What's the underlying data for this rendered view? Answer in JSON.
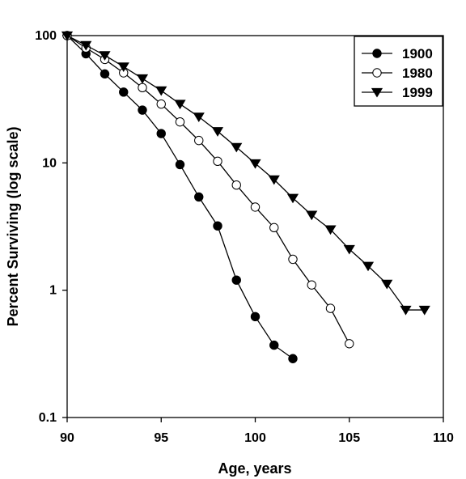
{
  "chart_data": {
    "type": "line",
    "xlabel": "Age, years",
    "ylabel": "Percent Surviving (log scale)",
    "xlim": [
      90,
      110
    ],
    "ylim": [
      0.1,
      100
    ],
    "y_scale": "log",
    "x_ticks": [
      "90",
      "95",
      "100",
      "105",
      "110"
    ],
    "y_ticks": [
      "0.1",
      "1",
      "10",
      "100"
    ],
    "legend_position": "top-right",
    "series": [
      {
        "name": "1900",
        "marker": "filled-circle",
        "x": [
          90,
          91,
          92,
          93,
          94,
          95,
          96,
          97,
          98,
          99,
          100,
          101,
          102
        ],
        "values": [
          100,
          72,
          50,
          36,
          26,
          17,
          9.7,
          5.4,
          3.2,
          1.2,
          0.62,
          0.37,
          0.29
        ]
      },
      {
        "name": "1980",
        "marker": "open-circle",
        "x": [
          90,
          91,
          92,
          93,
          94,
          95,
          96,
          97,
          98,
          99,
          100,
          101,
          102,
          103,
          104,
          105
        ],
        "values": [
          100,
          80,
          65,
          51,
          39,
          29,
          21,
          15,
          10.3,
          6.7,
          4.5,
          3.1,
          1.75,
          1.1,
          0.72,
          0.38
        ]
      },
      {
        "name": "1999",
        "marker": "filled-down-triangle",
        "x": [
          90,
          91,
          92,
          93,
          94,
          95,
          96,
          97,
          98,
          99,
          100,
          101,
          102,
          103,
          104,
          105,
          106,
          107,
          108,
          109
        ],
        "values": [
          100,
          84,
          70,
          57,
          46,
          37,
          29,
          23,
          17.7,
          13.3,
          9.9,
          7.4,
          5.3,
          3.9,
          3.0,
          2.1,
          1.55,
          1.12,
          0.7,
          0.7
        ]
      }
    ]
  }
}
